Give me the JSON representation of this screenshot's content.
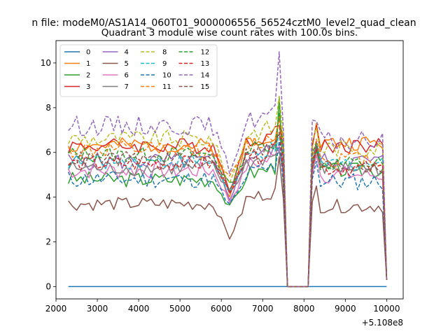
{
  "chart_data": {
    "type": "line",
    "suptitle": "n file: modeM0/AS1A14_060T01_9000006556_56524cztM0_level2_quad_clean",
    "title": "Quadrant 3 module wise count rates with 100.0s bins.",
    "xlabel": "",
    "ylabel": "",
    "x_offset_label": "+5.108e8",
    "xlim": [
      2000,
      10400
    ],
    "ylim": [
      -0.55,
      11.0
    ],
    "x_ticks": [
      2000,
      3000,
      4000,
      5000,
      6000,
      7000,
      8000,
      9000,
      10000
    ],
    "y_ticks": [
      0,
      2,
      4,
      6,
      8,
      10
    ],
    "grid": false,
    "legend_position": "top-left",
    "legend_columns": 4,
    "series": [
      {
        "name": "0",
        "color": "#1f77b4",
        "dashed": false,
        "base": 0,
        "amp": 0,
        "dip": 0,
        "peak": 0,
        "post": 0,
        "seed": 1
      },
      {
        "name": "1",
        "color": "#ff7f0e",
        "dashed": false,
        "base": 6.3,
        "amp": 0.35,
        "dip": 3.9,
        "peak": 7.6,
        "post": 6.7,
        "seed": 2
      },
      {
        "name": "2",
        "color": "#2ca02c",
        "dashed": false,
        "base": 4.8,
        "amp": 0.35,
        "dip": 3.5,
        "peak": 8.5,
        "post": 5.5,
        "seed": 3
      },
      {
        "name": "3",
        "color": "#d62728",
        "dashed": false,
        "base": 6.3,
        "amp": 0.35,
        "dip": 4.4,
        "peak": 7.2,
        "post": 6.6,
        "seed": 4
      },
      {
        "name": "4",
        "color": "#9467bd",
        "dashed": false,
        "base": 5.6,
        "amp": 0.4,
        "dip": 4.0,
        "peak": 6.0,
        "post": 5.9,
        "seed": 5
      },
      {
        "name": "5",
        "color": "#8c564b",
        "dashed": false,
        "base": 3.7,
        "amp": 0.3,
        "dip": 2.2,
        "peak": 5.8,
        "post": 3.9,
        "seed": 6
      },
      {
        "name": "6",
        "color": "#e377c2",
        "dashed": false,
        "base": 5.2,
        "amp": 0.4,
        "dip": 3.8,
        "peak": 6.3,
        "post": 5.3,
        "seed": 7
      },
      {
        "name": "7",
        "color": "#7f7f7f",
        "dashed": false,
        "base": 5.3,
        "amp": 0.35,
        "dip": 4.2,
        "peak": 6.0,
        "post": 5.6,
        "seed": 8
      },
      {
        "name": "8",
        "color": "#bcbd22",
        "dashed": true,
        "base": 6.6,
        "amp": 0.4,
        "dip": 4.6,
        "peak": 8.5,
        "post": 6.5,
        "seed": 9
      },
      {
        "name": "9",
        "color": "#17becf",
        "dashed": true,
        "base": 5.6,
        "amp": 0.35,
        "dip": 4.2,
        "peak": 6.8,
        "post": 5.8,
        "seed": 10
      },
      {
        "name": "10",
        "color": "#1f77b4",
        "dashed": true,
        "base": 4.8,
        "amp": 0.4,
        "dip": 3.6,
        "peak": 6.5,
        "post": 5.0,
        "seed": 11
      },
      {
        "name": "11",
        "color": "#ff7f0e",
        "dashed": true,
        "base": 6.1,
        "amp": 0.4,
        "dip": 4.8,
        "peak": 7.5,
        "post": 6.0,
        "seed": 12
      },
      {
        "name": "12",
        "color": "#2ca02c",
        "dashed": true,
        "base": 5.9,
        "amp": 0.35,
        "dip": 4.5,
        "peak": 7.8,
        "post": 5.8,
        "seed": 13
      },
      {
        "name": "13",
        "color": "#d62728",
        "dashed": true,
        "base": 5.5,
        "amp": 0.35,
        "dip": 4.3,
        "peak": 6.9,
        "post": 5.6,
        "seed": 14
      },
      {
        "name": "14",
        "color": "#9467bd",
        "dashed": true,
        "base": 7.2,
        "amp": 0.45,
        "dip": 5.2,
        "peak": 10.5,
        "post": 6.8,
        "seed": 15
      },
      {
        "name": "15",
        "color": "#8c564b",
        "dashed": true,
        "base": 5.7,
        "amp": 0.35,
        "dip": 4.4,
        "peak": 6.9,
        "post": 5.7,
        "seed": 16
      }
    ],
    "time_profile": {
      "start": 2300,
      "end": 10000,
      "step": 100,
      "dip_at": 6200,
      "dip_width": 300,
      "peak_at": 7400,
      "gap_start": 7600,
      "gap_end": 8100,
      "post_peak_at": 8300,
      "final_drop_at": 10000,
      "final_value": 0.3
    }
  }
}
